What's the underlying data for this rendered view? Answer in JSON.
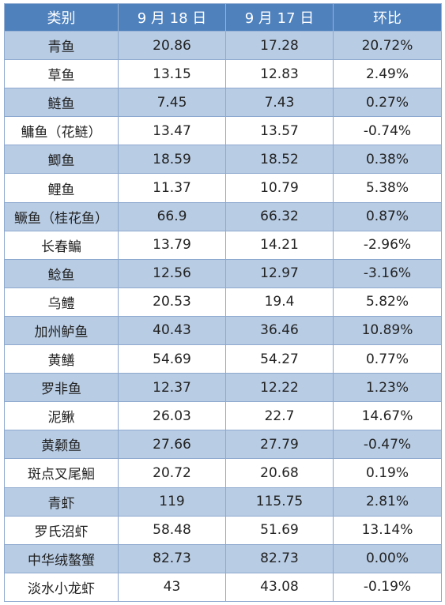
{
  "table": {
    "headers": [
      "类别",
      "9 月 18 日",
      "9 月 17 日",
      "环比"
    ],
    "rows": [
      [
        "青鱼",
        "20.86",
        "17.28",
        "20.72%"
      ],
      [
        "草鱼",
        "13.15",
        "12.83",
        "2.49%"
      ],
      [
        "鲢鱼",
        "7.45",
        "7.43",
        "0.27%"
      ],
      [
        "鳙鱼（花鲢）",
        "13.47",
        "13.57",
        "-0.74%"
      ],
      [
        "鲫鱼",
        "18.59",
        "18.52",
        "0.38%"
      ],
      [
        "鲤鱼",
        "11.37",
        "10.79",
        "5.38%"
      ],
      [
        "鳜鱼（桂花鱼）",
        "66.9",
        "66.32",
        "0.87%"
      ],
      [
        "长春鳊",
        "13.79",
        "14.21",
        "-2.96%"
      ],
      [
        "鲶鱼",
        "12.56",
        "12.97",
        "-3.16%"
      ],
      [
        "乌鳢",
        "20.53",
        "19.4",
        "5.82%"
      ],
      [
        "加州鲈鱼",
        "40.43",
        "36.46",
        "10.89%"
      ],
      [
        "黄鳝",
        "54.69",
        "54.27",
        "0.77%"
      ],
      [
        "罗非鱼",
        "12.37",
        "12.22",
        "1.23%"
      ],
      [
        "泥鳅",
        "26.03",
        "22.7",
        "14.67%"
      ],
      [
        "黄颡鱼",
        "27.66",
        "27.79",
        "-0.47%"
      ],
      [
        "斑点叉尾鮰",
        "20.72",
        "20.68",
        "0.19%"
      ],
      [
        "青虾",
        "119",
        "115.75",
        "2.81%"
      ],
      [
        "罗氏沼虾",
        "58.48",
        "51.69",
        "13.14%"
      ],
      [
        "中华绒螯蟹",
        "82.73",
        "82.73",
        "0.00%"
      ],
      [
        "淡水小龙虾",
        "43",
        "43.08",
        "-0.19%"
      ]
    ]
  },
  "colors": {
    "header_bg": "#4f81bd",
    "header_text": "#ffffff",
    "band_bg": "#b8cce4",
    "row_bg": "#ffffff",
    "border": "#8ea9cf"
  }
}
